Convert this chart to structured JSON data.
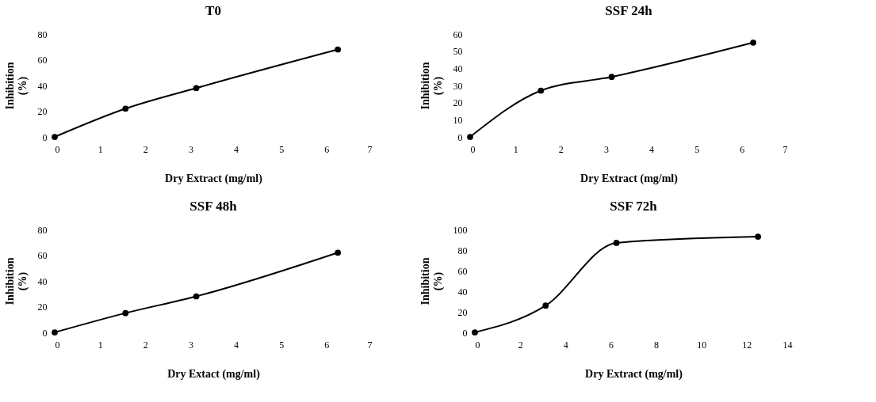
{
  "chart_data": [
    {
      "type": "line",
      "title": "T0",
      "xlabel": "Dry Extract (mg/ml)",
      "ylabel": "Inhibition (%)",
      "x": [
        0,
        1.5625,
        3.125,
        6.25
      ],
      "series": [
        {
          "color": "#000000",
          "values": [
            0,
            22,
            38,
            68
          ]
        }
      ],
      "xlim": [
        0,
        7
      ],
      "xticks": [
        0,
        1,
        2,
        3,
        4,
        5,
        6,
        7
      ],
      "ylim": [
        0,
        80
      ],
      "yticks": [
        0,
        20,
        40,
        60,
        80
      ],
      "marker": "circle",
      "line_style": "solid",
      "grid": false
    },
    {
      "type": "line",
      "title": "SSF 24h",
      "xlabel": "Dry Extract (mg/ml)",
      "ylabel": "Inhibition (%)",
      "x": [
        0,
        1.5625,
        3.125,
        6.25
      ],
      "series": [
        {
          "color": "#000000",
          "values": [
            0,
            27,
            35,
            55
          ]
        }
      ],
      "xlim": [
        0,
        7
      ],
      "xticks": [
        0,
        1,
        2,
        3,
        4,
        5,
        6,
        7
      ],
      "ylim": [
        0,
        60
      ],
      "yticks": [
        0,
        10,
        20,
        30,
        40,
        50,
        60
      ],
      "marker": "circle",
      "line_style": "solid",
      "grid": false
    },
    {
      "type": "line",
      "title": "SSF 48h",
      "xlabel": "Dry Extact (mg/ml)",
      "ylabel": "Inhibition (%)",
      "x": [
        0,
        1.5625,
        3.125,
        6.25
      ],
      "series": [
        {
          "color": "#000000",
          "values": [
            0,
            15,
            28,
            62
          ]
        }
      ],
      "xlim": [
        0,
        7
      ],
      "xticks": [
        0,
        1,
        2,
        3,
        4,
        5,
        6,
        7
      ],
      "ylim": [
        0,
        80
      ],
      "yticks": [
        0,
        20,
        40,
        60,
        80
      ],
      "marker": "circle",
      "line_style": "solid",
      "grid": false
    },
    {
      "type": "line",
      "title": "SSF 72h",
      "xlabel": "Dry Extract (mg/ml)",
      "ylabel": "Inhibition (%)",
      "x": [
        0,
        3.125,
        6.25,
        12.5
      ],
      "series": [
        {
          "color": "#000000",
          "values": [
            0,
            26,
            87,
            93
          ]
        }
      ],
      "xlim": [
        0,
        14
      ],
      "xticks": [
        0,
        2,
        4,
        6,
        8,
        10,
        12,
        14
      ],
      "ylim": [
        0,
        100
      ],
      "yticks": [
        0,
        20,
        40,
        60,
        80,
        100
      ],
      "marker": "circle",
      "line_style": "solid",
      "grid": false
    }
  ]
}
